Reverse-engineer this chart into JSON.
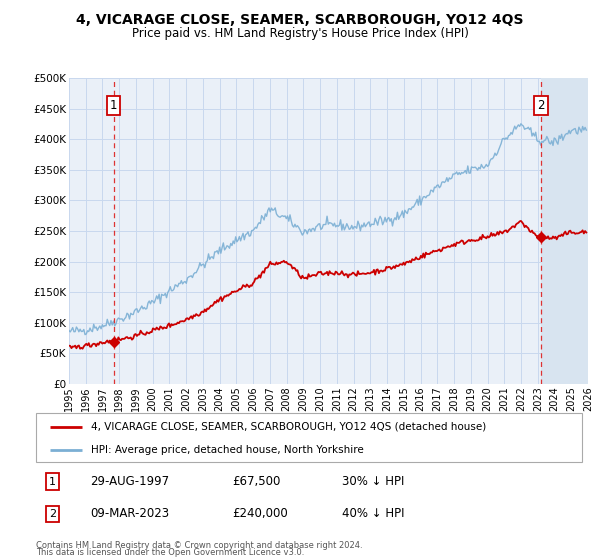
{
  "title": "4, VICARAGE CLOSE, SEAMER, SCARBOROUGH, YO12 4QS",
  "subtitle": "Price paid vs. HM Land Registry's House Price Index (HPI)",
  "xlim": [
    1995,
    2026
  ],
  "ylim": [
    0,
    500000
  ],
  "yticks": [
    0,
    50000,
    100000,
    150000,
    200000,
    250000,
    300000,
    350000,
    400000,
    450000,
    500000
  ],
  "ytick_labels": [
    "£0",
    "£50K",
    "£100K",
    "£150K",
    "£200K",
    "£250K",
    "£300K",
    "£350K",
    "£400K",
    "£450K",
    "£500K"
  ],
  "xticks": [
    1995,
    1996,
    1997,
    1998,
    1999,
    2000,
    2001,
    2002,
    2003,
    2004,
    2005,
    2006,
    2007,
    2008,
    2009,
    2010,
    2011,
    2012,
    2013,
    2014,
    2015,
    2016,
    2017,
    2018,
    2019,
    2020,
    2021,
    2022,
    2023,
    2024,
    2025,
    2026
  ],
  "hpi_color": "#7bafd4",
  "price_color": "#cc0000",
  "vline_color": "#dd3333",
  "grid_color": "#c8d8ee",
  "bg_color": "#eaf0f8",
  "hatch_color": "#cccccc",
  "sale1_x": 1997.66,
  "sale1_y": 67500,
  "sale2_x": 2023.19,
  "sale2_y": 240000,
  "legend_label1": "4, VICARAGE CLOSE, SEAMER, SCARBOROUGH, YO12 4QS (detached house)",
  "legend_label2": "HPI: Average price, detached house, North Yorkshire",
  "annotation1_date": "29-AUG-1997",
  "annotation1_price": "£67,500",
  "annotation1_hpi": "30% ↓ HPI",
  "annotation2_date": "09-MAR-2023",
  "annotation2_price": "£240,000",
  "annotation2_hpi": "40% ↓ HPI",
  "footnote1": "Contains HM Land Registry data © Crown copyright and database right 2024.",
  "footnote2": "This data is licensed under the Open Government Licence v3.0."
}
